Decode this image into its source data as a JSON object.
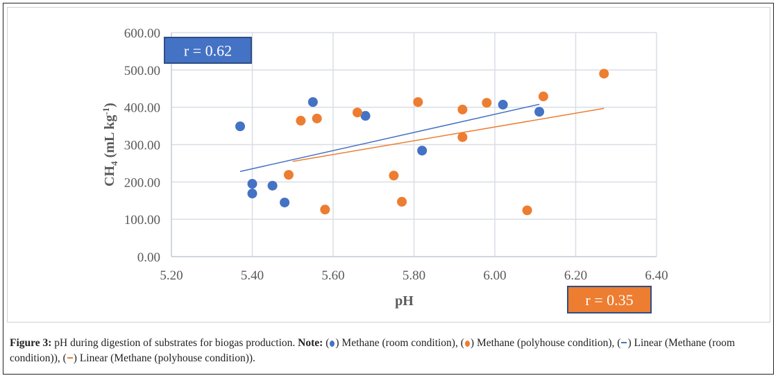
{
  "chart_data": {
    "type": "scatter",
    "title": "",
    "xlabel": "pH",
    "ylabel": "CH4 (mL kg-1)",
    "xlim": [
      5.2,
      6.4
    ],
    "ylim": [
      0,
      600
    ],
    "x_ticks": [
      "5.20",
      "5.40",
      "5.60",
      "5.80",
      "6.00",
      "6.20",
      "6.40"
    ],
    "y_ticks": [
      "0.00",
      "100.00",
      "200.00",
      "300.00",
      "400.00",
      "500.00",
      "600.00"
    ],
    "grid": true,
    "legend": "none",
    "series": [
      {
        "name": "Methane (room condition)",
        "color": "#4472C4",
        "points": [
          [
            5.37,
            349
          ],
          [
            5.4,
            195
          ],
          [
            5.4,
            169
          ],
          [
            5.45,
            190
          ],
          [
            5.48,
            145
          ],
          [
            5.55,
            414
          ],
          [
            5.68,
            377
          ],
          [
            5.82,
            284
          ],
          [
            6.02,
            407
          ],
          [
            6.11,
            388
          ]
        ],
        "trendline": {
          "name": "Linear (Methane (room condition))",
          "from": [
            5.37,
            228
          ],
          "to": [
            6.11,
            408
          ]
        }
      },
      {
        "name": "Methane (polyhouse condition)",
        "color": "#ED7D31",
        "points": [
          [
            5.49,
            219
          ],
          [
            5.52,
            364
          ],
          [
            5.56,
            370
          ],
          [
            5.58,
            126
          ],
          [
            5.66,
            386
          ],
          [
            5.75,
            217
          ],
          [
            5.77,
            147
          ],
          [
            5.81,
            414
          ],
          [
            5.92,
            394
          ],
          [
            5.92,
            320
          ],
          [
            5.98,
            412
          ],
          [
            6.08,
            124
          ],
          [
            6.12,
            429
          ],
          [
            6.27,
            490
          ]
        ],
        "trendline": {
          "name": "Linear (Methane (polyhouse condition))",
          "from": [
            5.5,
            255
          ],
          "to": [
            6.27,
            397
          ]
        }
      }
    ],
    "annotations": [
      {
        "text": "r = 0.62",
        "color": "#4472C4",
        "position": "top-left"
      },
      {
        "text": "r = 0.35",
        "color": "#ED7D31",
        "position": "bottom-right"
      }
    ]
  },
  "caption": {
    "label": "Figure 3:",
    "text": " pH during digestion of substrates for biogas production. ",
    "note_label": "Note:",
    "items": [
      {
        "symbol": "dot",
        "color": "#4472C4",
        "text": " Methane (room condition), "
      },
      {
        "symbol": "dot",
        "color": "#ED7D31",
        "text": " Methane (polyhouse condition), "
      },
      {
        "symbol": "line",
        "color": "#4472C4",
        "text": " Linear (Methane (room condition)), "
      },
      {
        "symbol": "line",
        "color": "#ED7D31",
        "text": " Linear (Methane (polyhouse condition))."
      }
    ]
  }
}
